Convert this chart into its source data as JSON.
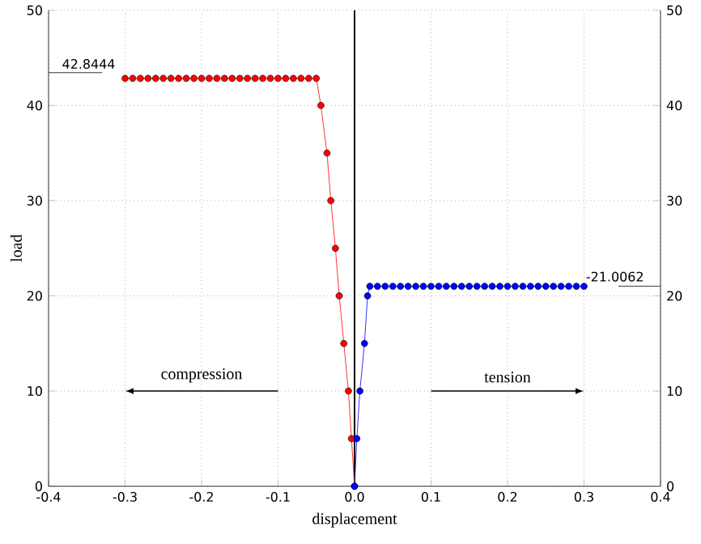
{
  "chart_data": {
    "type": "line",
    "xlabel": "displacement",
    "ylabel": "load",
    "xlim": [
      -0.4,
      0.4
    ],
    "xticks": [
      -0.4,
      -0.3,
      -0.2,
      -0.1,
      {
        "value": 0,
        "label": "0.0"
      },
      0.1,
      0.2,
      0.3,
      0.4
    ],
    "ylim": [
      0,
      50
    ],
    "yticks": [
      0,
      10,
      20,
      30,
      40,
      50
    ],
    "y2lim": [
      0,
      50
    ],
    "y2ticks": [
      0,
      10,
      20,
      30,
      40,
      50
    ],
    "grid": true,
    "marker": "circle",
    "line_style": "solid",
    "series": [
      {
        "color": "#ff0000",
        "x": [
          0,
          -0.004,
          -0.008,
          -0.014,
          -0.02,
          -0.025,
          -0.031,
          -0.036,
          -0.044,
          -0.05,
          -0.06,
          -0.07,
          -0.08,
          -0.09,
          -0.1,
          -0.11,
          -0.12,
          -0.13,
          -0.14,
          -0.15,
          -0.16,
          -0.17,
          -0.18,
          -0.19,
          -0.2,
          -0.21,
          -0.22,
          -0.23,
          -0.24,
          -0.25,
          -0.26,
          -0.27,
          -0.28,
          -0.29,
          -0.3
        ],
        "values": [
          0,
          5,
          10,
          15,
          20,
          25,
          30,
          35,
          40,
          42.8444,
          42.8444,
          42.8444,
          42.8444,
          42.8444,
          42.8444,
          42.8444,
          42.8444,
          42.8444,
          42.8444,
          42.8444,
          42.8444,
          42.8444,
          42.8444,
          42.8444,
          42.8444,
          42.8444,
          42.8444,
          42.8444,
          42.8444,
          42.8444,
          42.8444,
          42.8444,
          42.8444,
          42.8444,
          42.8444
        ]
      },
      {
        "color": "#0000ff",
        "x": [
          0,
          0.003,
          0.007,
          0.013,
          0.017,
          0.02,
          0.03,
          0.04,
          0.05,
          0.06,
          0.07,
          0.08,
          0.09,
          0.1,
          0.11,
          0.12,
          0.13,
          0.14,
          0.15,
          0.16,
          0.17,
          0.18,
          0.19,
          0.2,
          0.21,
          0.22,
          0.23,
          0.24,
          0.25,
          0.26,
          0.27,
          0.28,
          0.29,
          0.3
        ],
        "values": [
          0,
          5,
          10,
          15,
          20,
          21.0062,
          21.0062,
          21.0062,
          21.0062,
          21.0062,
          21.0062,
          21.0062,
          21.0062,
          21.0062,
          21.0062,
          21.0062,
          21.0062,
          21.0062,
          21.0062,
          21.0062,
          21.0062,
          21.0062,
          21.0062,
          21.0062,
          21.0062,
          21.0062,
          21.0062,
          21.0062,
          21.0062,
          21.0062,
          21.0062,
          21.0062,
          21.0062,
          21.0062
        ]
      }
    ],
    "ref_lines": [
      {
        "axis": "x",
        "value": 0,
        "color": "#000000"
      }
    ],
    "annotations": [
      {
        "text": "42.8444",
        "x": -0.3,
        "y": 42.8444
      },
      {
        "text": "-21.0062",
        "x": 0.3,
        "y": 21.0062
      },
      "compression",
      "tension"
    ]
  }
}
